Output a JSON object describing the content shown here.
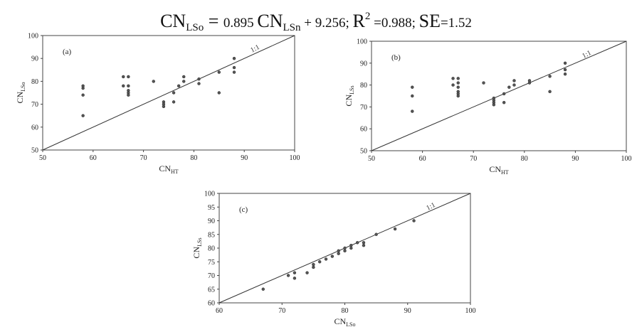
{
  "equation": {
    "lhs": "CN",
    "lhs_sub": "LSo",
    "eq": " = ",
    "coef": "0.895",
    "rhs": "CN",
    "rhs_sub": "LSn",
    "intercept": " + 9.256;",
    "r2_label": "R",
    "r2_sup": "2",
    "r2_value": " =0.988;",
    "se_label": "SE",
    "se_value": "=1.52"
  },
  "chart_data": [
    {
      "type": "scatter",
      "panel_label": "(a)",
      "reference_line_label": "1:1",
      "xlabel": "CN",
      "xlabel_sub": "HT",
      "ylabel": "CN",
      "ylabel_sub": "LSo",
      "xlim": [
        50,
        100
      ],
      "ylim": [
        50,
        100
      ],
      "xticks": [
        50,
        60,
        70,
        80,
        90,
        100
      ],
      "yticks": [
        50,
        60,
        70,
        80,
        90,
        100
      ],
      "points": [
        [
          58,
          78
        ],
        [
          58,
          77
        ],
        [
          58,
          74
        ],
        [
          58,
          65
        ],
        [
          66,
          82
        ],
        [
          66,
          78
        ],
        [
          67,
          82
        ],
        [
          67,
          78
        ],
        [
          67,
          76
        ],
        [
          67,
          75
        ],
        [
          67,
          74
        ],
        [
          72,
          80
        ],
        [
          74,
          71
        ],
        [
          74,
          70
        ],
        [
          74,
          69
        ],
        [
          76,
          71
        ],
        [
          76,
          75
        ],
        [
          77,
          78
        ],
        [
          78,
          80
        ],
        [
          78,
          82
        ],
        [
          81,
          79
        ],
        [
          81,
          81
        ],
        [
          85,
          75
        ],
        [
          85,
          84
        ],
        [
          88,
          84
        ],
        [
          88,
          86
        ],
        [
          88,
          90
        ]
      ]
    },
    {
      "type": "scatter",
      "panel_label": "(b)",
      "reference_line_label": "1:1",
      "xlabel": "CN",
      "xlabel_sub": "HT",
      "ylabel": "CN",
      "ylabel_sub": "LSs",
      "xlim": [
        50,
        100
      ],
      "ylim": [
        50,
        100
      ],
      "xticks": [
        50,
        60,
        70,
        80,
        90,
        100
      ],
      "yticks": [
        50,
        60,
        70,
        80,
        90,
        100
      ],
      "points": [
        [
          58,
          79
        ],
        [
          58,
          75
        ],
        [
          58,
          68
        ],
        [
          66,
          83
        ],
        [
          66,
          80
        ],
        [
          67,
          83
        ],
        [
          67,
          81
        ],
        [
          67,
          79
        ],
        [
          67,
          77
        ],
        [
          67,
          76
        ],
        [
          67,
          75
        ],
        [
          72,
          81
        ],
        [
          74,
          74
        ],
        [
          74,
          73
        ],
        [
          74,
          72
        ],
        [
          74,
          71
        ],
        [
          76,
          72
        ],
        [
          76,
          76
        ],
        [
          77,
          79
        ],
        [
          78,
          80
        ],
        [
          78,
          82
        ],
        [
          81,
          81
        ],
        [
          81,
          82
        ],
        [
          85,
          77
        ],
        [
          85,
          84
        ],
        [
          88,
          85
        ],
        [
          88,
          87
        ],
        [
          88,
          90
        ]
      ]
    },
    {
      "type": "scatter",
      "panel_label": "(c)",
      "reference_line_label": "1:1",
      "xlabel": "CN",
      "xlabel_sub": "LSo",
      "ylabel": "CN",
      "ylabel_sub": "LSs",
      "xlim": [
        60,
        100
      ],
      "ylim": [
        60,
        100
      ],
      "xticks": [
        60,
        70,
        80,
        90,
        100
      ],
      "yticks": [
        60,
        65,
        70,
        75,
        80,
        85,
        90,
        95,
        100
      ],
      "points": [
        [
          67,
          65
        ],
        [
          71,
          70
        ],
        [
          72,
          71
        ],
        [
          72,
          69
        ],
        [
          74,
          71
        ],
        [
          75,
          74
        ],
        [
          75,
          73
        ],
        [
          76,
          75
        ],
        [
          77,
          76
        ],
        [
          78,
          77
        ],
        [
          79,
          78
        ],
        [
          79,
          79
        ],
        [
          80,
          79
        ],
        [
          80,
          80
        ],
        [
          81,
          80
        ],
        [
          81,
          81
        ],
        [
          82,
          82
        ],
        [
          83,
          82
        ],
        [
          83,
          81
        ],
        [
          85,
          85
        ],
        [
          88,
          87
        ],
        [
          91,
          90
        ]
      ]
    }
  ]
}
